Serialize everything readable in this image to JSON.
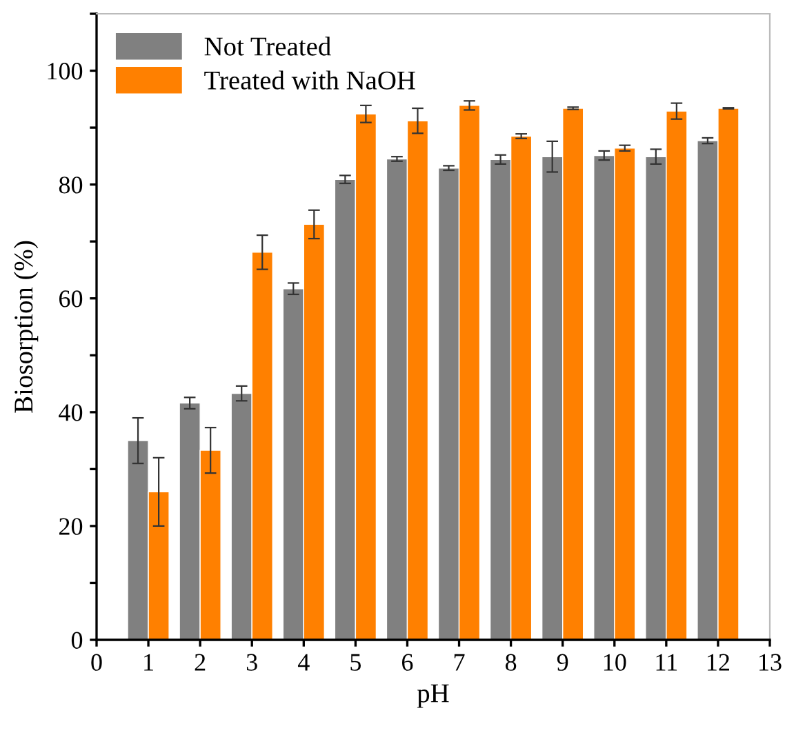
{
  "chart_data": {
    "type": "bar",
    "xlabel": "pH",
    "ylabel": "Biosorption (%)",
    "x": [
      1,
      2,
      3,
      4,
      5,
      6,
      7,
      8,
      9,
      10,
      11,
      12
    ],
    "series": [
      {
        "name": "Not Treated",
        "color": "#808080",
        "values": [
          35,
          41.6,
          43.3,
          61.7,
          80.9,
          84.5,
          82.9,
          84.4,
          84.9,
          85.1,
          84.9,
          87.7
        ],
        "errors": [
          4,
          1,
          1.3,
          1,
          0.7,
          0.4,
          0.4,
          0.8,
          2.7,
          0.8,
          1.3,
          0.5
        ]
      },
      {
        "name": "Treated with NaOH",
        "color": "#ff8000",
        "values": [
          26,
          33.3,
          68.1,
          73,
          92.4,
          91.2,
          93.9,
          88.5,
          93.4,
          86.4,
          92.9,
          93.4
        ],
        "errors": [
          6,
          4,
          3,
          2.5,
          1.5,
          2.2,
          0.8,
          0.4,
          0.2,
          0.5,
          1.4,
          0.1
        ]
      }
    ],
    "xlim": [
      0,
      13
    ],
    "xticks": [
      0,
      1,
      2,
      3,
      4,
      5,
      6,
      7,
      8,
      9,
      10,
      11,
      12,
      13
    ],
    "ylim": [
      0,
      110
    ],
    "yticks": [
      0,
      {
        "value": 10,
        "label": null
      },
      20,
      {
        "value": 30,
        "label": null
      },
      40,
      {
        "value": 50,
        "label": null
      },
      60,
      {
        "value": 70,
        "label": null
      },
      80,
      {
        "value": 90,
        "label": null
      },
      100,
      {
        "value": 110,
        "label": null
      }
    ],
    "legend": "top left",
    "grid": false
  }
}
